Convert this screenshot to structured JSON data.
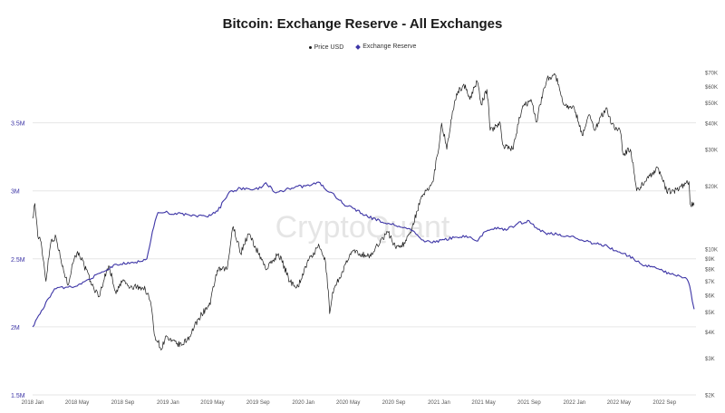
{
  "title": "Bitcoin: Exchange Reserve - All Exchanges",
  "legend": [
    {
      "name": "Price USD",
      "marker": "dot",
      "color": "#1a1a1a"
    },
    {
      "name": "Exchange Reserve",
      "marker": "diamond",
      "color": "#3d35a6"
    }
  ],
  "watermark": "CryptoQuant",
  "chart_data": {
    "type": "line",
    "title": "Bitcoin: Exchange Reserve - All Exchanges",
    "x_ticks": [
      "2018 Jan",
      "2018 May",
      "2018 Sep",
      "2019 Jan",
      "2019 May",
      "2019 Sep",
      "2020 Jan",
      "2020 May",
      "2020 Sep",
      "2021 Jan",
      "2021 May",
      "2021 Sep",
      "2022 Jan",
      "2022 May",
      "2022 Sep"
    ],
    "left_axis": {
      "ticks": [
        "1.5M",
        "2M",
        "2.5M",
        "3M",
        "3.5M"
      ],
      "values": [
        1500000,
        2000000,
        2500000,
        3000000,
        3500000
      ],
      "range": [
        1500000,
        3950000
      ],
      "color": "#3d35a6"
    },
    "right_axis": {
      "scale": "log",
      "ticks": [
        "$2K",
        "$3K",
        "$4K",
        "$5K",
        "$6K",
        "$7K",
        "$8K",
        "$9K",
        "$10K",
        "$20K",
        "$30K",
        "$40K",
        "$50K",
        "$60K",
        "$70K"
      ],
      "values": [
        2000,
        3000,
        4000,
        5000,
        6000,
        7000,
        8000,
        9000,
        10000,
        20000,
        30000,
        40000,
        50000,
        60000,
        70000
      ],
      "range": [
        2000,
        70000
      ]
    },
    "grid": true,
    "legend_position": "top",
    "series": [
      {
        "name": "Price USD",
        "axis": "right",
        "color": "#1a1a1a",
        "points": [
          [
            "2018-01-01",
            14000
          ],
          [
            "2018-01-07",
            16500
          ],
          [
            "2018-01-15",
            11500
          ],
          [
            "2018-01-22",
            11000
          ],
          [
            "2018-02-06",
            7000
          ],
          [
            "2018-02-20",
            11000
          ],
          [
            "2018-03-05",
            11400
          ],
          [
            "2018-03-20",
            8500
          ],
          [
            "2018-04-06",
            6700
          ],
          [
            "2018-04-25",
            9300
          ],
          [
            "2018-05-06",
            9600
          ],
          [
            "2018-05-20",
            8300
          ],
          [
            "2018-06-10",
            6700
          ],
          [
            "2018-06-29",
            5900
          ],
          [
            "2018-07-25",
            8300
          ],
          [
            "2018-08-14",
            6100
          ],
          [
            "2018-09-01",
            7100
          ],
          [
            "2018-09-20",
            6500
          ],
          [
            "2018-10-15",
            6600
          ],
          [
            "2018-11-01",
            6400
          ],
          [
            "2018-11-15",
            5600
          ],
          [
            "2018-11-25",
            3900
          ],
          [
            "2018-12-15",
            3300
          ],
          [
            "2018-12-25",
            3800
          ],
          [
            "2019-01-10",
            3600
          ],
          [
            "2019-02-07",
            3450
          ],
          [
            "2019-02-28",
            3800
          ],
          [
            "2019-04-02",
            4900
          ],
          [
            "2019-04-25",
            5400
          ],
          [
            "2019-05-14",
            7900
          ],
          [
            "2019-06-10",
            8000
          ],
          [
            "2019-06-26",
            12800
          ],
          [
            "2019-07-16",
            9500
          ],
          [
            "2019-08-06",
            11800
          ],
          [
            "2019-09-01",
            9600
          ],
          [
            "2019-09-24",
            8000
          ],
          [
            "2019-10-26",
            9500
          ],
          [
            "2019-11-25",
            7000
          ],
          [
            "2019-12-18",
            6600
          ],
          [
            "2020-01-15",
            8800
          ],
          [
            "2020-02-13",
            10300
          ],
          [
            "2020-03-01",
            8600
          ],
          [
            "2020-03-12",
            4900
          ],
          [
            "2020-03-20",
            6200
          ],
          [
            "2020-04-08",
            7300
          ],
          [
            "2020-04-30",
            8800
          ],
          [
            "2020-05-10",
            9700
          ],
          [
            "2020-06-01",
            9500
          ],
          [
            "2020-07-01",
            9200
          ],
          [
            "2020-07-27",
            11000
          ],
          [
            "2020-08-17",
            12000
          ],
          [
            "2020-09-05",
            10200
          ],
          [
            "2020-10-01",
            10600
          ],
          [
            "2020-10-21",
            12800
          ],
          [
            "2020-11-17",
            17800
          ],
          [
            "2020-12-16",
            21000
          ],
          [
            "2021-01-02",
            32000
          ],
          [
            "2021-01-08",
            40000
          ],
          [
            "2021-01-22",
            30000
          ],
          [
            "2021-02-08",
            46000
          ],
          [
            "2021-02-21",
            57000
          ],
          [
            "2021-03-13",
            61000
          ],
          [
            "2021-03-25",
            52000
          ],
          [
            "2021-04-14",
            63500
          ],
          [
            "2021-04-25",
            49000
          ],
          [
            "2021-05-10",
            58000
          ],
          [
            "2021-05-19",
            37000
          ],
          [
            "2021-06-15",
            40000
          ],
          [
            "2021-06-22",
            31500
          ],
          [
            "2021-07-20",
            30000
          ],
          [
            "2021-08-13",
            47000
          ],
          [
            "2021-09-06",
            52000
          ],
          [
            "2021-09-21",
            40500
          ],
          [
            "2021-10-20",
            66000
          ],
          [
            "2021-11-10",
            68500
          ],
          [
            "2021-12-04",
            49000
          ],
          [
            "2022-01-01",
            47000
          ],
          [
            "2022-01-22",
            35000
          ],
          [
            "2022-02-10",
            44000
          ],
          [
            "2022-02-24",
            37000
          ],
          [
            "2022-03-28",
            47500
          ],
          [
            "2022-04-11",
            39500
          ],
          [
            "2022-05-05",
            36500
          ],
          [
            "2022-05-12",
            28500
          ],
          [
            "2022-06-01",
            30000
          ],
          [
            "2022-06-18",
            19000
          ],
          [
            "2022-07-10",
            21000
          ],
          [
            "2022-08-14",
            24500
          ],
          [
            "2022-09-07",
            18800
          ],
          [
            "2022-10-10",
            19200
          ],
          [
            "2022-10-30",
            20800
          ],
          [
            "2022-11-06",
            21000
          ],
          [
            "2022-11-09",
            16500
          ],
          [
            "2022-11-20",
            16200
          ]
        ]
      },
      {
        "name": "Exchange Reserve",
        "axis": "left",
        "color": "#3d35a6",
        "points": [
          [
            "2018-01-01",
            2000000
          ],
          [
            "2018-01-25",
            2120000
          ],
          [
            "2018-03-01",
            2280000
          ],
          [
            "2018-03-30",
            2290000
          ],
          [
            "2018-05-01",
            2300000
          ],
          [
            "2018-06-01",
            2350000
          ],
          [
            "2018-07-15",
            2410000
          ],
          [
            "2018-08-15",
            2460000
          ],
          [
            "2018-10-01",
            2470000
          ],
          [
            "2018-11-05",
            2500000
          ],
          [
            "2018-11-20",
            2700000
          ],
          [
            "2018-12-05",
            2840000
          ],
          [
            "2019-01-01",
            2840000
          ],
          [
            "2019-03-01",
            2820000
          ],
          [
            "2019-04-15",
            2810000
          ],
          [
            "2019-05-15",
            2850000
          ],
          [
            "2019-06-15",
            2990000
          ],
          [
            "2019-07-15",
            3020000
          ],
          [
            "2019-09-01",
            3010000
          ],
          [
            "2019-09-22",
            3060000
          ],
          [
            "2019-10-15",
            2990000
          ],
          [
            "2019-12-01",
            3020000
          ],
          [
            "2020-01-10",
            3040000
          ],
          [
            "2020-02-15",
            3060000
          ],
          [
            "2020-03-01",
            3010000
          ],
          [
            "2020-03-15",
            2990000
          ],
          [
            "2020-04-15",
            2910000
          ],
          [
            "2020-05-15",
            2870000
          ],
          [
            "2020-06-15",
            2820000
          ],
          [
            "2020-08-01",
            2770000
          ],
          [
            "2020-09-15",
            2740000
          ],
          [
            "2020-10-15",
            2720000
          ],
          [
            "2020-11-15",
            2640000
          ],
          [
            "2020-12-10",
            2620000
          ],
          [
            "2021-01-15",
            2640000
          ],
          [
            "2021-02-15",
            2660000
          ],
          [
            "2021-03-15",
            2670000
          ],
          [
            "2021-04-15",
            2630000
          ],
          [
            "2021-05-05",
            2700000
          ],
          [
            "2021-06-01",
            2730000
          ],
          [
            "2021-07-01",
            2710000
          ],
          [
            "2021-08-01",
            2760000
          ],
          [
            "2021-09-01",
            2780000
          ],
          [
            "2021-09-20",
            2730000
          ],
          [
            "2021-10-15",
            2690000
          ],
          [
            "2021-11-15",
            2680000
          ],
          [
            "2022-01-01",
            2660000
          ],
          [
            "2022-02-01",
            2630000
          ],
          [
            "2022-03-01",
            2610000
          ],
          [
            "2022-04-01",
            2590000
          ],
          [
            "2022-04-20",
            2560000
          ],
          [
            "2022-05-15",
            2540000
          ],
          [
            "2022-06-10",
            2500000
          ],
          [
            "2022-07-01",
            2460000
          ],
          [
            "2022-08-01",
            2440000
          ],
          [
            "2022-08-20",
            2420000
          ],
          [
            "2022-09-15",
            2390000
          ],
          [
            "2022-10-15",
            2370000
          ],
          [
            "2022-11-01",
            2350000
          ],
          [
            "2022-11-08",
            2300000
          ],
          [
            "2022-11-15",
            2190000
          ],
          [
            "2022-11-20",
            2130000
          ]
        ]
      }
    ]
  }
}
